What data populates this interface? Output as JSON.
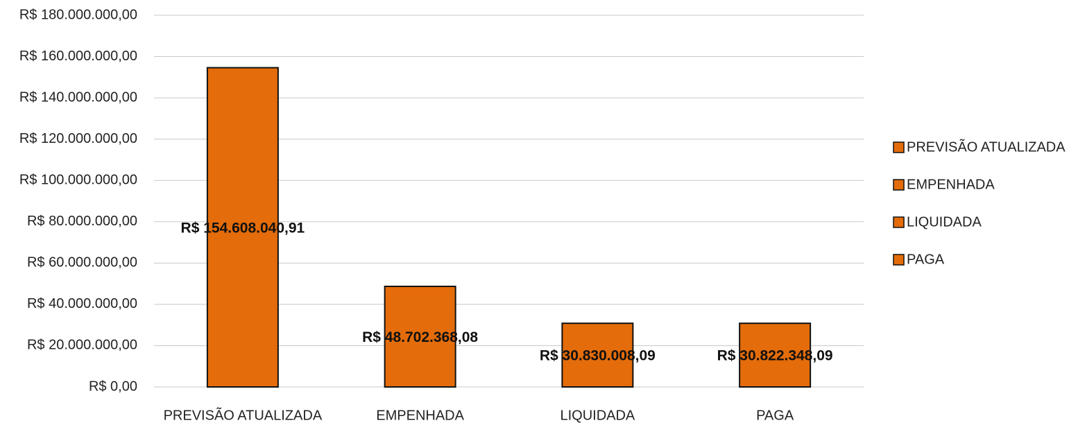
{
  "chart_data": {
    "type": "bar",
    "categories": [
      "PREVISÃO ATUALIZADA",
      "EMPENHADA",
      "LIQUIDADA",
      "PAGA"
    ],
    "values": [
      154608040.91,
      48702368.08,
      30830008.09,
      30822348.09
    ],
    "value_labels": [
      "R$ 154.608.040,91",
      "R$ 48.702.368,08",
      "R$ 30.830.008,09",
      "R$ 30.822.348,09"
    ],
    "color": "#e46c0a",
    "ylim": [
      0,
      180000000
    ],
    "yticks": [
      {
        "value": 0,
        "label": "R$ 0,00"
      },
      {
        "value": 20000000,
        "label": "R$ 20.000.000,00"
      },
      {
        "value": 40000000,
        "label": "R$ 40.000.000,00"
      },
      {
        "value": 60000000,
        "label": "R$ 60.000.000,00"
      },
      {
        "value": 80000000,
        "label": "R$ 80.000.000,00"
      },
      {
        "value": 100000000,
        "label": "R$ 100.000.000,00"
      },
      {
        "value": 120000000,
        "label": "R$ 120.000.000,00"
      },
      {
        "value": 140000000,
        "label": "R$ 140.000.000,00"
      },
      {
        "value": 160000000,
        "label": "R$ 160.000.000,00"
      },
      {
        "value": 180000000,
        "label": "R$ 180.000.000,00"
      }
    ],
    "grid": true,
    "legend": "right"
  }
}
